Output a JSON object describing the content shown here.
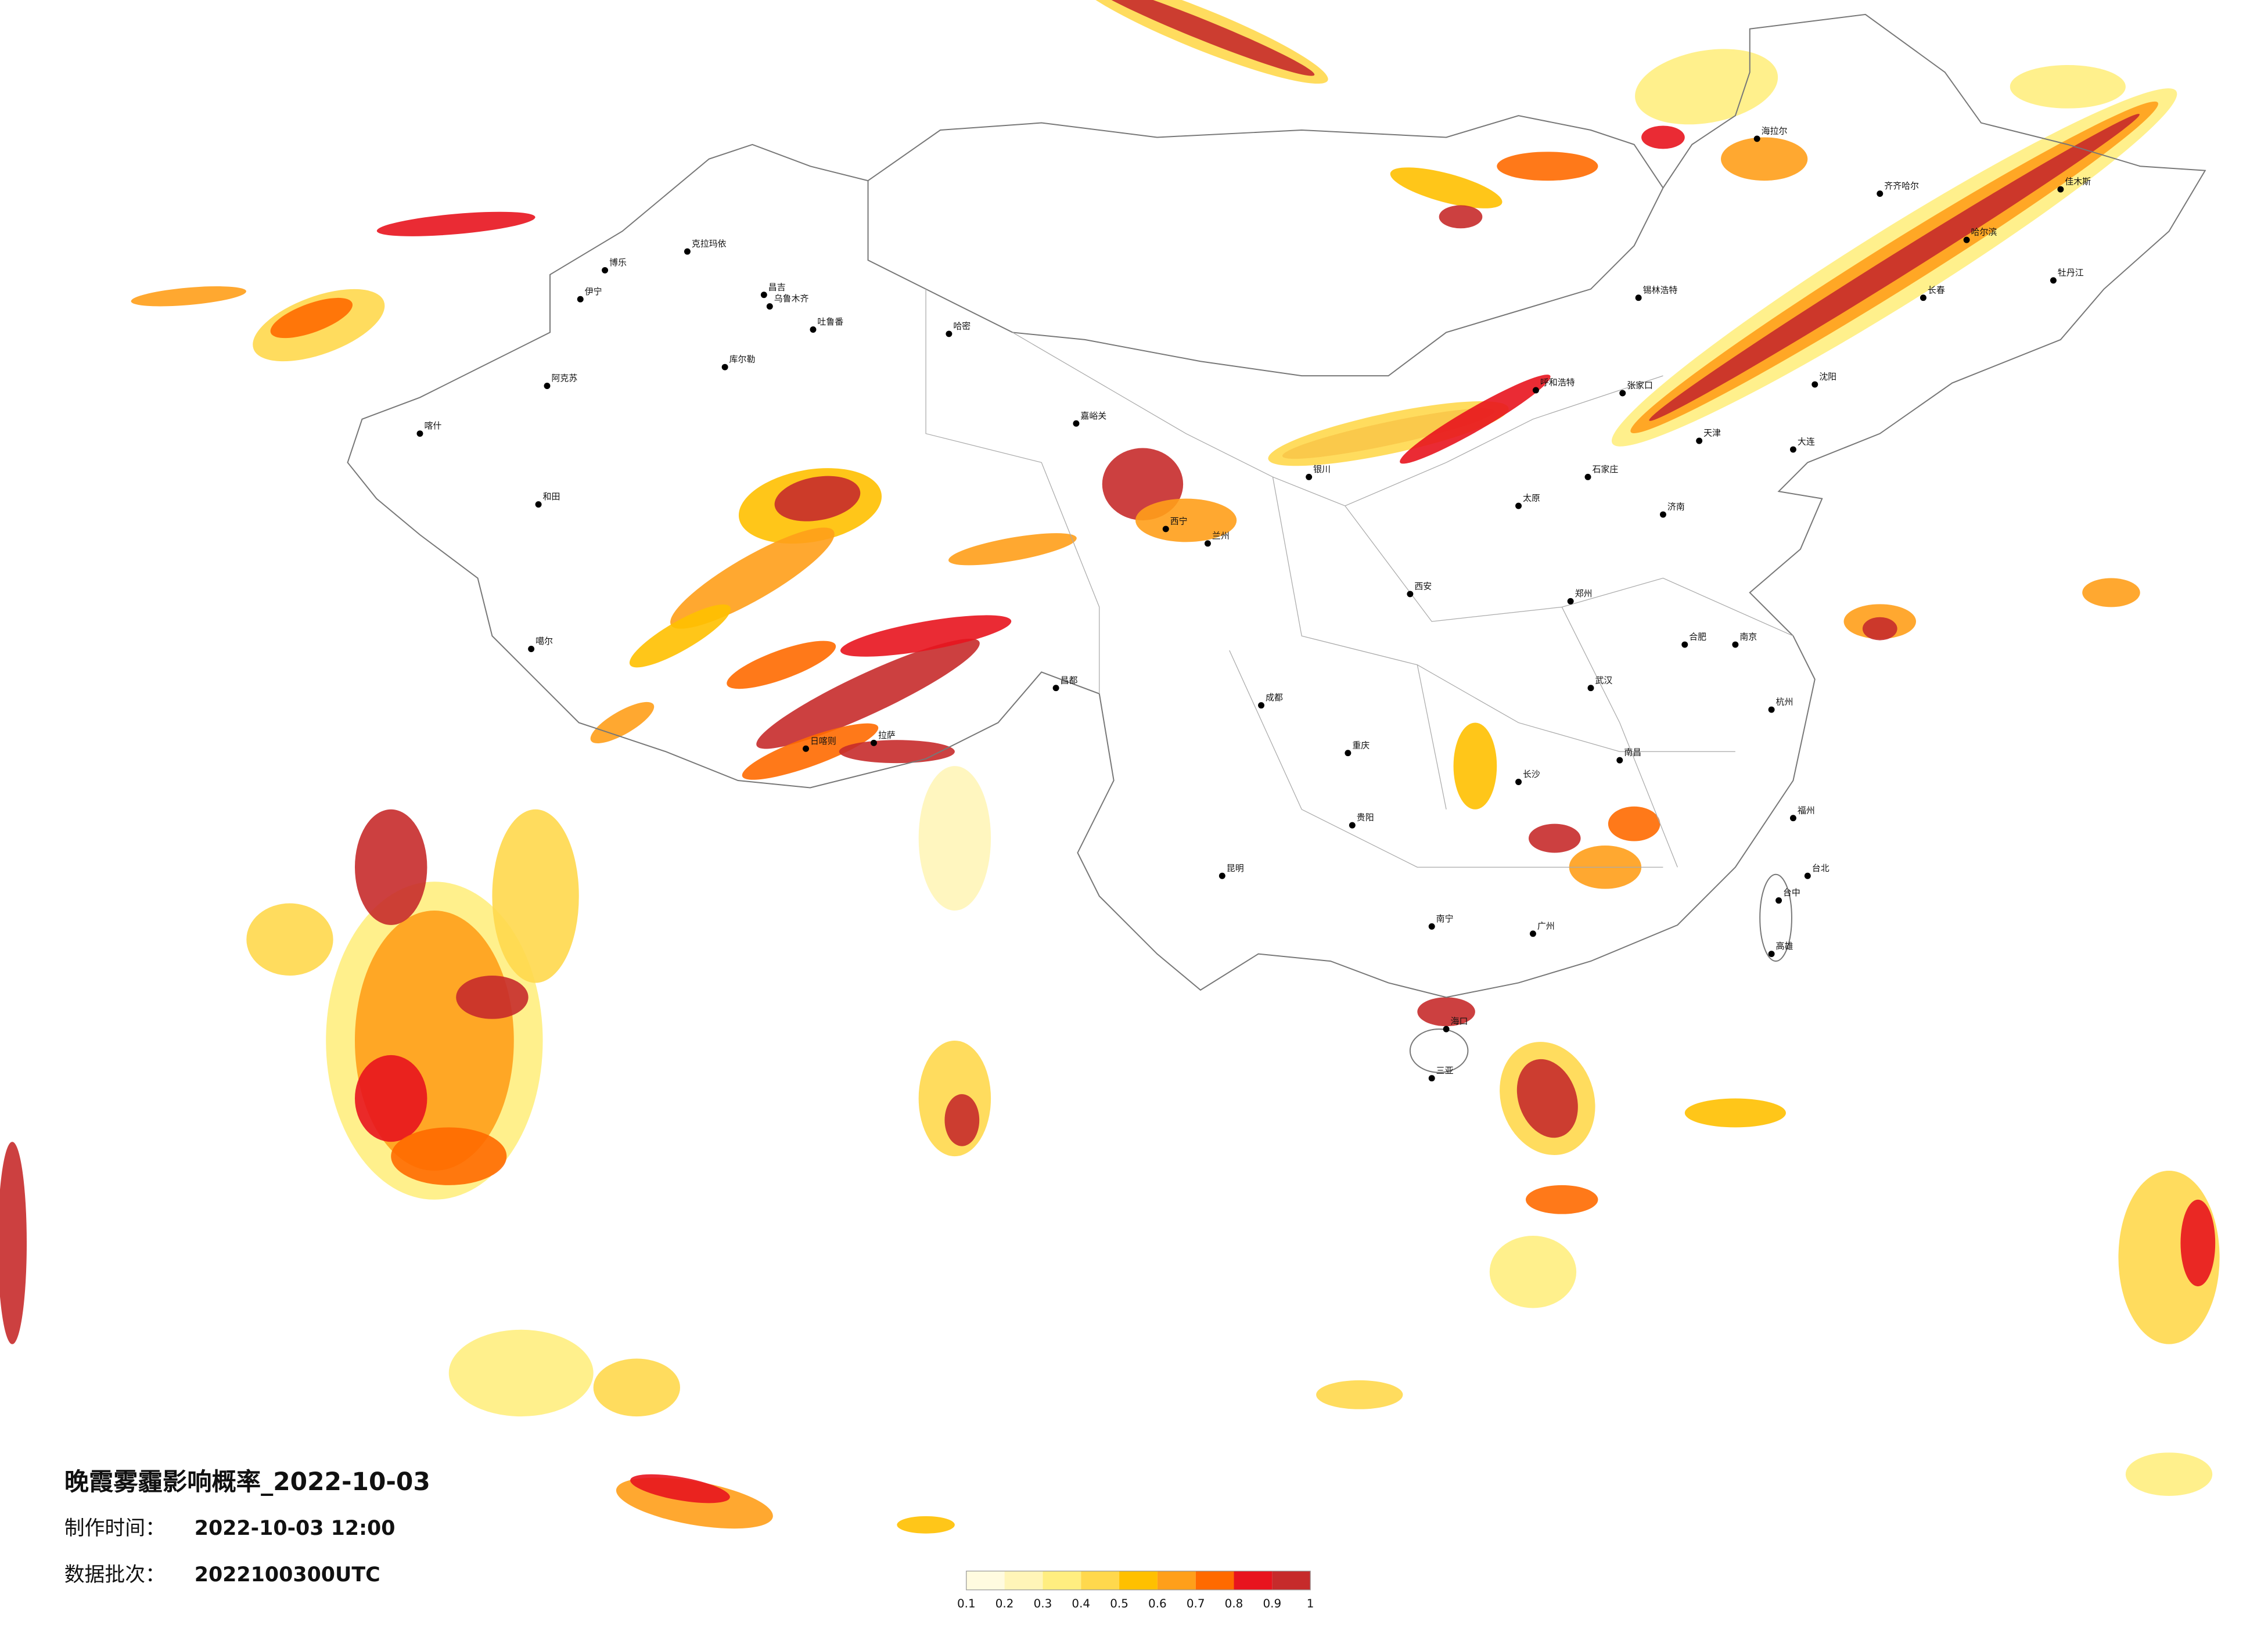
{
  "title": "晚霞雾霾影响概率_2022-10-03",
  "meta": [
    {
      "label": "制作时间：",
      "value": "2022-10-03 12:00"
    },
    {
      "label": "数据批次：",
      "value": "2022100300UTC"
    }
  ],
  "legend": {
    "ticks": [
      0.1,
      0.2,
      0.3,
      0.4,
      0.5,
      0.6,
      0.7,
      0.8,
      0.9,
      1
    ],
    "colors": [
      "#fffbe0",
      "#fff5b8",
      "#ffee80",
      "#ffd84d",
      "#ffc000",
      "#ff9f1a",
      "#ff6a00",
      "#e8141e",
      "#c62b2b"
    ]
  },
  "cities": [
    "克拉玛依",
    "昌吉",
    "乌鲁木齐",
    "吐鲁番",
    "哈密",
    "库尔勒",
    "阿克苏",
    "伊宁",
    "博乐",
    "和田",
    "喀什",
    "噶尔",
    "拉萨",
    "日喀则",
    "昌都",
    "嘉峪关",
    "西宁",
    "兰州",
    "银川",
    "呼和浩特",
    "锡林浩特",
    "张家口",
    "天津",
    "石家庄",
    "太原",
    "济南",
    "郑州",
    "西安",
    "成都",
    "重庆",
    "贵阳",
    "昆明",
    "南宁",
    "长沙",
    "武汉",
    "南昌",
    "合肥",
    "南京",
    "杭州",
    "福州",
    "广州",
    "海口",
    "沈阳",
    "长春",
    "哈尔滨",
    "齐齐哈尔",
    "海拉尔",
    "牡丹江",
    "佳木斯",
    "大连",
    "台北",
    "台中",
    "高雄",
    "三亚"
  ]
}
